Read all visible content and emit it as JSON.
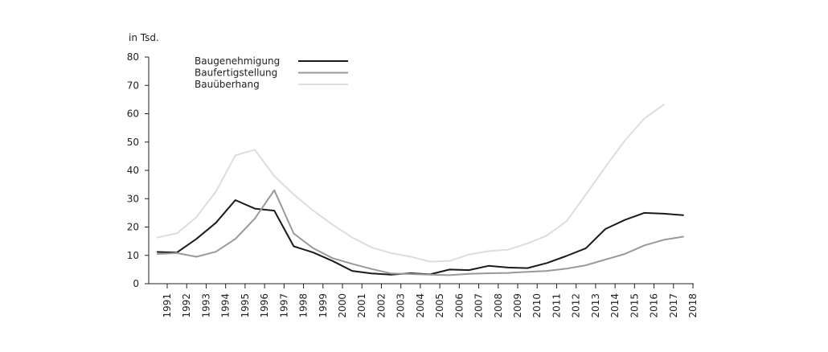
{
  "chart_data": {
    "type": "line",
    "y_unit": "in Tsd.",
    "ylim": [
      0,
      80
    ],
    "y_ticks": [
      "0",
      "10",
      "20",
      "30",
      "40",
      "50",
      "60",
      "70",
      "80"
    ],
    "x_labels": [
      "1991",
      "1992",
      "1993",
      "1994",
      "1995",
      "1996",
      "1997",
      "1998",
      "1999",
      "2000",
      "2001",
      "2002",
      "2003",
      "2004",
      "2005",
      "2006",
      "2007",
      "2008",
      "2009",
      "2010",
      "2011",
      "2012",
      "2013",
      "2014",
      "2015",
      "2016",
      "2017",
      "2018"
    ],
    "grid": false,
    "legend_position": "top-left",
    "series": [
      {
        "name": "Baugenehmigung",
        "color": "#1a1a1a",
        "x": [
          1990.5,
          1991.5,
          1992.5,
          1993.5,
          1994.5,
          1995.5,
          1996.5,
          1997.5,
          1998.5,
          1999.5,
          2000.5,
          2001.5,
          2002.5,
          2003.5,
          2004.5,
          2005.5,
          2006.5,
          2007.5,
          2008.5,
          2009.5,
          2010.5,
          2011.5,
          2012.5,
          2013.5,
          2014.5,
          2015.5,
          2016.5,
          2017.5
        ],
        "values": [
          11.2,
          11.0,
          15.8,
          21.5,
          29.5,
          26.5,
          25.8,
          13.2,
          11.0,
          8.0,
          4.5,
          3.6,
          3.2,
          3.7,
          3.3,
          5.0,
          4.8,
          6.3,
          5.7,
          5.5,
          7.3,
          9.8,
          12.5,
          19.3,
          22.5,
          25.0,
          24.7,
          24.2
        ]
      },
      {
        "name": "Baufertigstellung",
        "color": "#999999",
        "x": [
          1990.5,
          1991.5,
          1992.5,
          1993.5,
          1994.5,
          1995.5,
          1996.5,
          1997.5,
          1998.5,
          1999.5,
          2000.5,
          2001.5,
          2002.5,
          2003.5,
          2004.5,
          2005.5,
          2006.5,
          2007.5,
          2008.5,
          2009.5,
          2010.5,
          2011.5,
          2012.5,
          2013.5,
          2014.5,
          2015.5,
          2016.5,
          2017.5
        ],
        "values": [
          10.5,
          10.8,
          9.5,
          11.3,
          15.8,
          23.0,
          33.0,
          17.7,
          12.5,
          9.0,
          7.0,
          5.2,
          3.6,
          3.4,
          3.2,
          3.0,
          3.5,
          3.7,
          3.8,
          4.2,
          4.5,
          5.3,
          6.5,
          8.5,
          10.5,
          13.5,
          15.5,
          16.6
        ]
      },
      {
        "name": "Bauüberhang",
        "color": "#dddddd",
        "x": [
          1990.5,
          1991.5,
          1992.5,
          1993.5,
          1994.5,
          1995.5,
          1996.5,
          1997.5,
          1998.5,
          1999.5,
          2000.5,
          2001.5,
          2002.5,
          2003.5,
          2004.5,
          2005.5,
          2006.5,
          2007.5,
          2008.5,
          2009.5,
          2010.5,
          2011.5,
          2012.5,
          2013.5,
          2014.5,
          2015.5,
          2016.5
        ],
        "values": [
          16.3,
          17.8,
          23.5,
          32.5,
          45.3,
          47.3,
          38.0,
          31.5,
          25.8,
          20.8,
          16.3,
          12.8,
          10.8,
          9.5,
          7.8,
          8.0,
          10.3,
          11.5,
          12.0,
          14.2,
          17.0,
          22.0,
          31.5,
          41.2,
          50.5,
          58.3,
          63.2
        ]
      }
    ]
  }
}
